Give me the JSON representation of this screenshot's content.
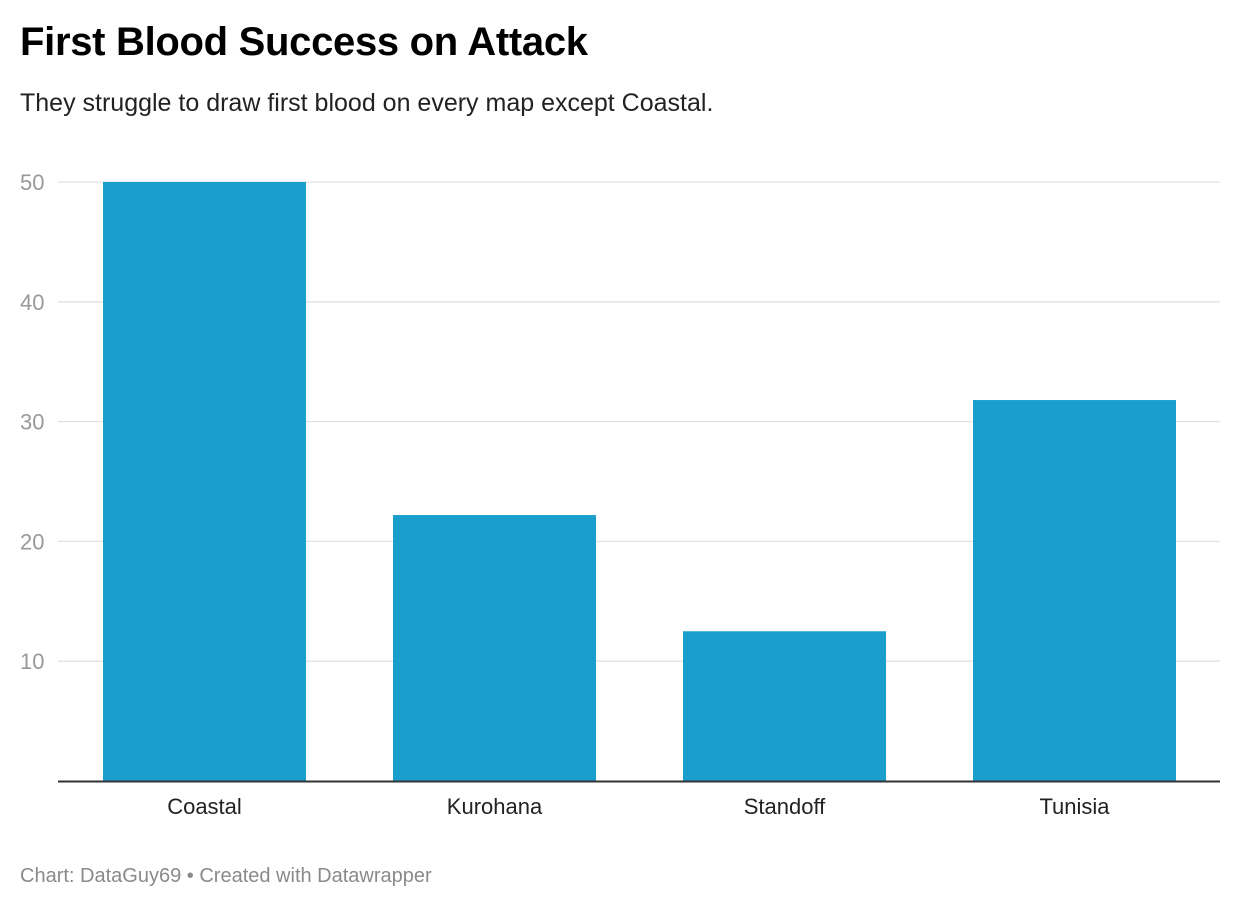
{
  "header": {
    "title": "First Blood Success on Attack",
    "subtitle": "They struggle to draw first blood on every map except Coastal."
  },
  "footer": {
    "source_label": "Chart: DataGuy69",
    "separator": "•",
    "credit": "Created with Datawrapper"
  },
  "colors": {
    "bar": "#1a9fcd",
    "gridline": "#e2e2e2",
    "baseline": "#333333",
    "tick_label": "#999999",
    "category_label": "#222222"
  },
  "chart_data": {
    "type": "bar",
    "title": "First Blood Success on Attack",
    "subtitle": "They struggle to draw first blood on every map except Coastal.",
    "xlabel": "",
    "ylabel": "",
    "categories": [
      "Coastal",
      "Kurohana",
      "Standoff",
      "Tunisia"
    ],
    "values": [
      50,
      22.2,
      12.5,
      31.8
    ],
    "ylim": [
      0,
      50
    ],
    "yticks": [
      10,
      20,
      30,
      40,
      50
    ],
    "grid": true,
    "legend": "none"
  }
}
